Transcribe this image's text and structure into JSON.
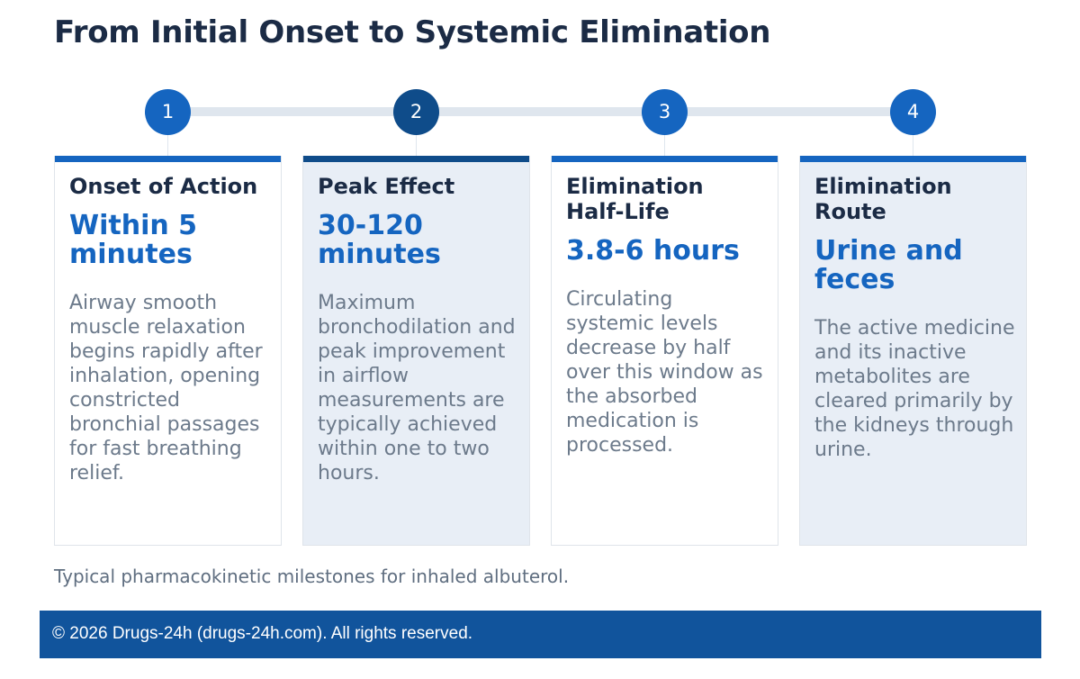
{
  "title": "From Initial Onset to Systemic Elimination",
  "colors": {
    "accent": "#1565c0",
    "accent_dark": "#0f4c8a",
    "heading": "#1b2b45",
    "body_text": "#6c7a8b",
    "track": "#dfe6ee",
    "shaded_card": "#e8eef6",
    "footer_bg": "#11549c"
  },
  "steps": [
    {
      "number": "1",
      "heading": "Onset of Action",
      "value": "Within 5 minutes",
      "description": "Airway smooth muscle relaxation begins rapidly after inhalation, opening constricted bronchial passages for fast breathing relief."
    },
    {
      "number": "2",
      "heading": "Peak Effect",
      "value": "30-120 minutes",
      "description": "Maximum bronchodilation and peak improvement in airflow measurements are typically achieved within one to two hours."
    },
    {
      "number": "3",
      "heading": "Elimination Half-Life",
      "value": "3.8-6 hours",
      "description": "Circulating systemic levels decrease by half over this window as the absorbed medication is processed."
    },
    {
      "number": "4",
      "heading": "Elimination Route",
      "value": "Urine and feces",
      "description": "The active medicine and its inactive metabolites are cleared primarily by the kidneys through urine."
    }
  ],
  "caption": "Typical pharmacokinetic milestones for inhaled albuterol.",
  "footer": "© 2026 Drugs-24h (drugs-24h.com). All rights reserved."
}
